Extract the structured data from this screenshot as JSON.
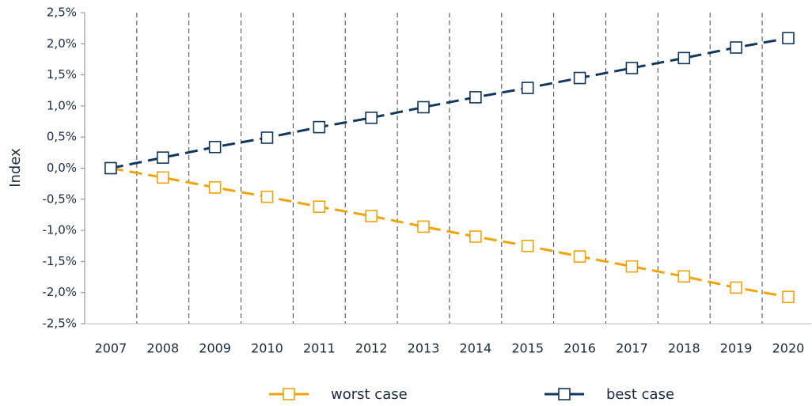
{
  "chart_data": {
    "type": "line",
    "ylabel": "Index",
    "categories": [
      "2007",
      "2008",
      "2009",
      "2010",
      "2011",
      "2012",
      "2013",
      "2014",
      "2015",
      "2016",
      "2017",
      "2018",
      "2019",
      "2020"
    ],
    "series": [
      {
        "name": "worst case",
        "color": "#f0a30a",
        "values": [
          0,
          -0.15,
          -0.31,
          -0.46,
          -0.62,
          -0.77,
          -0.94,
          -1.1,
          -1.25,
          -1.42,
          -1.58,
          -1.74,
          -1.92,
          -2.07
        ]
      },
      {
        "name": "best case",
        "color": "#12365e",
        "values": [
          0,
          0.17,
          0.34,
          0.49,
          0.66,
          0.81,
          0.98,
          1.14,
          1.29,
          1.45,
          1.61,
          1.77,
          1.94,
          2.09
        ]
      }
    ],
    "ylim": [
      -2.5,
      2.5
    ],
    "yticks": [
      {
        "value": 2.5,
        "label": "2,5%"
      },
      {
        "value": 2,
        "label": "2,0%"
      },
      {
        "value": 1.5,
        "label": "1,5%"
      },
      {
        "value": 1,
        "label": "1,0%"
      },
      {
        "value": 0.5,
        "label": "0,5%"
      },
      {
        "value": 0,
        "label": "0,0%"
      },
      {
        "value": -0.5,
        "label": "-0,5%"
      },
      {
        "value": -1,
        "label": "-1,0%"
      },
      {
        "value": -1.5,
        "label": "-1,5%"
      },
      {
        "value": -2,
        "label": "-2,0%"
      },
      {
        "value": -2.5,
        "label": "-2,5%"
      }
    ],
    "grid": true,
    "legend": "bottom"
  }
}
